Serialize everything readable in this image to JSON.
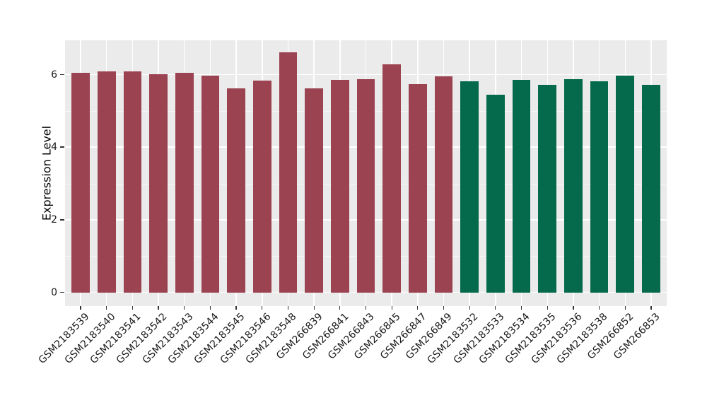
{
  "chart_data": {
    "type": "bar",
    "title": "",
    "xlabel": "",
    "ylabel": "Expression Level",
    "ylim": [
      0,
      6.94
    ],
    "yticks": [
      0,
      2,
      4,
      6
    ],
    "yticks_minor": [
      1,
      3,
      5
    ],
    "grid": "on",
    "legend_position": "none",
    "panel_background": "#EBEBEB",
    "gridline_color": "#FFFFFF",
    "tick_color": "#333333",
    "categories": [
      "GSM2183539",
      "GSM2183540",
      "GSM2183541",
      "GSM2183542",
      "GSM2183543",
      "GSM2183544",
      "GSM2183545",
      "GSM2183546",
      "GSM2183548",
      "GSM266839",
      "GSM266841",
      "GSM266843",
      "GSM266845",
      "GSM266847",
      "GSM266849",
      "GSM2183532",
      "GSM2183533",
      "GSM2183534",
      "GSM2183535",
      "GSM2183536",
      "GSM2183538",
      "GSM266852",
      "GSM266853"
    ],
    "values": [
      6.05,
      6.08,
      6.09,
      6.01,
      6.04,
      5.97,
      5.63,
      5.83,
      6.61,
      5.63,
      5.86,
      5.88,
      6.29,
      5.74,
      5.96,
      5.82,
      5.44,
      5.85,
      5.72,
      5.88,
      5.82,
      5.97,
      5.72
    ],
    "bar_groups": [
      0,
      0,
      0,
      0,
      0,
      0,
      0,
      0,
      0,
      0,
      0,
      0,
      0,
      0,
      0,
      1,
      1,
      1,
      1,
      1,
      1,
      1,
      1
    ],
    "group_colors": [
      "#9C4352",
      "#046A4B"
    ]
  }
}
